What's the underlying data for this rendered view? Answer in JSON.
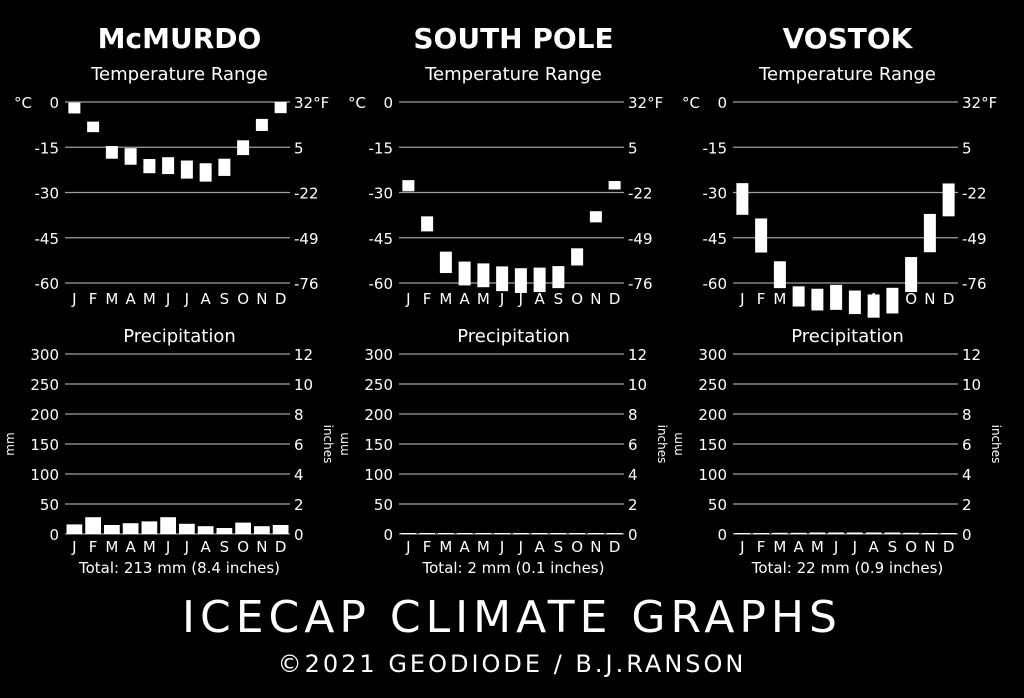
{
  "title": "ICECAP CLIMATE GRAPHS",
  "credit": "©2021 GEODIODE / B.J.RANSON",
  "colors": {
    "background": "#000000",
    "bars": "#ffffff",
    "grid": "#a0a0a0"
  },
  "chart_data": [
    {
      "station": "McMURDO",
      "temperature": {
        "type": "bar",
        "subtitle": "Temperature Range",
        "left_unit": "°C",
        "right_unit": "°F",
        "categories": [
          "J",
          "F",
          "M",
          "A",
          "M",
          "J",
          "J",
          "A",
          "S",
          "O",
          "N",
          "D"
        ],
        "ylim": [
          -60,
          0
        ],
        "left_ticks": [
          "0",
          "-15",
          "-30",
          "-45",
          "-60"
        ],
        "right_ticks": [
          "32°F",
          "5",
          "-22",
          "-49",
          "-76"
        ],
        "min": [
          -3.8,
          -10,
          -18.8,
          -20.8,
          -23.6,
          -23.9,
          -25.4,
          -26.4,
          -24.5,
          -17.6,
          -9.6,
          -3.7
        ],
        "max": [
          -0.2,
          -6.5,
          -14.6,
          -15.3,
          -18.9,
          -18.3,
          -19.4,
          -20.3,
          -18.8,
          -12.7,
          -5.6,
          0
        ]
      },
      "precipitation": {
        "type": "bar",
        "subtitle": "Precipitation",
        "ylabel": "mm",
        "ylabel_right": "inches",
        "ylim": [
          0,
          300
        ],
        "left_ticks": [
          "300",
          "250",
          "200",
          "150",
          "100",
          "50",
          "0"
        ],
        "right_ticks": [
          "12",
          "10",
          "8",
          "6",
          "4",
          "2",
          "0"
        ],
        "categories": [
          "J",
          "F",
          "M",
          "A",
          "M",
          "J",
          "J",
          "A",
          "S",
          "O",
          "N",
          "D"
        ],
        "values": [
          16,
          28,
          15,
          18,
          21,
          28,
          17,
          13,
          10,
          19,
          13,
          15
        ],
        "total": "Total: 213 mm (8.4 inches)"
      }
    },
    {
      "station": "SOUTH POLE",
      "temperature": {
        "type": "bar",
        "subtitle": "Temperature Range",
        "left_unit": "°C",
        "right_unit": "°F",
        "categories": [
          "J",
          "F",
          "M",
          "A",
          "M",
          "J",
          "J",
          "A",
          "S",
          "O",
          "N",
          "D"
        ],
        "ylim": [
          -60,
          0
        ],
        "left_ticks": [
          "0",
          "-15",
          "-30",
          "-45",
          "-60"
        ],
        "right_ticks": [
          "32°F",
          "5",
          "-22",
          "-49",
          "-76"
        ],
        "min": [
          -29.6,
          -42.9,
          -56.7,
          -60.8,
          -61.4,
          -62.7,
          -63.3,
          -63.0,
          -61.7,
          -54.2,
          -39.9,
          -29.0
        ],
        "max": [
          -25.9,
          -37.9,
          -49.6,
          -52.9,
          -53.5,
          -54.5,
          -55.1,
          -54.9,
          -54.4,
          -48.5,
          -36.2,
          -26.2
        ]
      },
      "precipitation": {
        "type": "bar",
        "subtitle": "Precipitation",
        "ylabel": "mm",
        "ylabel_right": "inches",
        "ylim": [
          0,
          300
        ],
        "left_ticks": [
          "300",
          "250",
          "200",
          "150",
          "100",
          "50",
          "0"
        ],
        "right_ticks": [
          "12",
          "10",
          "8",
          "6",
          "4",
          "2",
          "0"
        ],
        "categories": [
          "J",
          "F",
          "M",
          "A",
          "M",
          "J",
          "J",
          "A",
          "S",
          "O",
          "N",
          "D"
        ],
        "values": [
          0.2,
          0.2,
          0.2,
          0.2,
          0.2,
          0.2,
          0.1,
          0.1,
          0.1,
          0.1,
          0.2,
          0.2
        ],
        "total": "Total: 2 mm (0.1 inches)"
      }
    },
    {
      "station": "VOSTOK",
      "temperature": {
        "type": "bar",
        "subtitle": "Temperature Range",
        "left_unit": "°C",
        "right_unit": "°F",
        "categories": [
          "J",
          "F",
          "M",
          "A",
          "M",
          "J",
          "J",
          "A",
          "S",
          "O",
          "N",
          "D"
        ],
        "ylim": [
          -60,
          0
        ],
        "left_ticks": [
          "0",
          "-15",
          "-30",
          "-45",
          "-60"
        ],
        "right_ticks": [
          "32°F",
          "5",
          "-22",
          "-49",
          "-76"
        ],
        "min": [
          -37.4,
          -49.9,
          -61.7,
          -67.8,
          -69.1,
          -68.9,
          -70.3,
          -71.5,
          -70.1,
          -63.0,
          -49.8,
          -37.9
        ],
        "max": [
          -26.9,
          -38.6,
          -52.8,
          -61.1,
          -61.9,
          -60.6,
          -62.5,
          -63.8,
          -61.6,
          -51.4,
          -37.1,
          -27.0
        ]
      },
      "precipitation": {
        "type": "bar",
        "subtitle": "Precipitation",
        "ylabel": "mm",
        "ylabel_right": "inches",
        "ylim": [
          0,
          300
        ],
        "left_ticks": [
          "300",
          "250",
          "200",
          "150",
          "100",
          "50",
          "0"
        ],
        "right_ticks": [
          "12",
          "10",
          "8",
          "6",
          "4",
          "2",
          "0"
        ],
        "categories": [
          "J",
          "F",
          "M",
          "A",
          "M",
          "J",
          "J",
          "A",
          "S",
          "O",
          "N",
          "D"
        ],
        "values": [
          0.5,
          0.5,
          2,
          2,
          2.5,
          2.5,
          2.5,
          2.5,
          2.5,
          2,
          1.5,
          1.5
        ],
        "total": "Total: 22 mm (0.9 inches)"
      }
    }
  ]
}
